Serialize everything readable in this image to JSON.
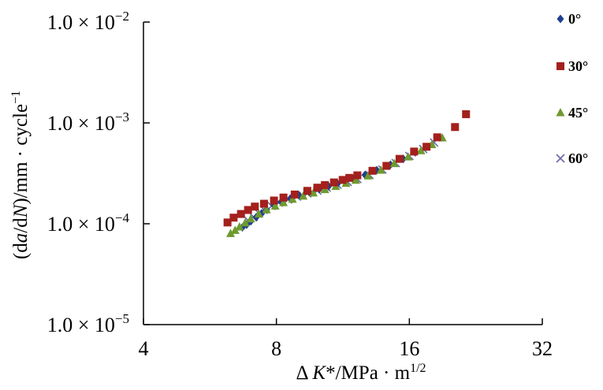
{
  "chart_data": {
    "type": "scatter",
    "xscale": "log2",
    "yscale": "log10",
    "xlim": [
      4,
      32
    ],
    "ylim": [
      1e-05,
      0.01
    ],
    "xticks": [
      4,
      8,
      16,
      32
    ],
    "xtick_labels": [
      "4",
      "8",
      "16",
      "32"
    ],
    "yticks": [
      1e-05,
      0.0001,
      0.001,
      0.01
    ],
    "ytick_labels": [
      {
        "mantissa": "1.0 × 10",
        "exp": "−5"
      },
      {
        "mantissa": "1.0 × 10",
        "exp": "−4"
      },
      {
        "mantissa": "1.0 × 10",
        "exp": "−3"
      },
      {
        "mantissa": "1.0 × 10",
        "exp": "−2"
      }
    ],
    "xlabel": {
      "pre": "Δ ",
      "italic": "K",
      "post": "*/MPa · m",
      "sup": "1/2"
    },
    "ylabel": {
      "p1": "(d",
      "i1": "a",
      "p2": "/d",
      "i2": "N",
      "p3": ")/mm · cycle",
      "sup": "−1"
    },
    "grid": false,
    "legend_position": "right",
    "series": [
      {
        "name": "0°",
        "marker": "diamond",
        "color": "#1f3f8f",
        "x": [
          6.7,
          6.85,
          7.0,
          7.2,
          7.4,
          7.6,
          7.9,
          8.2,
          8.6,
          9.0,
          9.5,
          10.0,
          10.5,
          11.0,
          11.5,
          12.0,
          12.7,
          13.5,
          14.5,
          15.5,
          16.5
        ],
        "y": [
          9.2e-05,
          9.8e-05,
          0.000106,
          0.000116,
          0.000126,
          0.000138,
          0.000152,
          0.000165,
          0.000178,
          0.000192,
          0.000205,
          0.00022,
          0.000235,
          0.00025,
          0.000265,
          0.000282,
          0.000305,
          0.00034,
          0.000385,
          0.00044,
          0.00051
        ]
      },
      {
        "name": "30°",
        "marker": "square",
        "color": "#a3201d",
        "x": [
          6.2,
          6.4,
          6.65,
          6.9,
          7.15,
          7.5,
          7.9,
          8.3,
          8.8,
          9.4,
          9.9,
          10.3,
          10.8,
          11.3,
          11.7,
          12.2,
          13.2,
          14.2,
          15.2,
          16.4,
          17.5,
          18.5,
          20.3,
          21.5
        ],
        "y": [
          0.000103,
          0.000115,
          0.000125,
          0.000137,
          0.000148,
          0.000158,
          0.00017,
          0.000182,
          0.000195,
          0.000212,
          0.000228,
          0.000242,
          0.000257,
          0.000272,
          0.000285,
          0.000302,
          0.000335,
          0.000375,
          0.00044,
          0.00052,
          0.00058,
          0.00072,
          0.00091,
          0.00122
        ]
      },
      {
        "name": "45°",
        "marker": "triangle",
        "color": "#6e9a2e",
        "x": [
          6.3,
          6.45,
          6.6,
          6.8,
          7.0,
          7.3,
          7.6,
          7.95,
          8.3,
          8.7,
          9.2,
          9.7,
          10.3,
          10.9,
          11.5,
          12.1,
          12.9,
          13.8,
          14.8,
          15.9,
          17.0,
          18.0,
          19.0
        ],
        "y": [
          8e-05,
          8.6e-05,
          9.3e-05,
          0.000102,
          0.000112,
          0.000125,
          0.000138,
          0.00015,
          0.000162,
          0.000175,
          0.000188,
          0.000202,
          0.000218,
          0.000235,
          0.000252,
          0.00027,
          0.000298,
          0.00034,
          0.000395,
          0.00046,
          0.00053,
          0.00061,
          0.00071
        ]
      },
      {
        "name": "60°",
        "marker": "cross",
        "color": "#6b6aa8",
        "x": [
          6.9,
          7.1,
          7.3,
          7.5,
          7.8,
          8.1,
          8.5,
          8.9,
          9.4,
          9.9,
          10.4,
          11.0,
          11.6,
          12.2,
          13.0,
          13.9,
          14.9,
          16.0,
          17.2,
          18.2
        ],
        "y": [
          0.000108,
          0.000117,
          0.000127,
          0.000138,
          0.00015,
          0.000162,
          0.000174,
          0.000186,
          0.0002,
          0.000213,
          0.000228,
          0.000244,
          0.00026,
          0.000278,
          0.000305,
          0.000345,
          0.0004,
          0.00047,
          0.00055,
          0.00064
        ]
      }
    ]
  }
}
